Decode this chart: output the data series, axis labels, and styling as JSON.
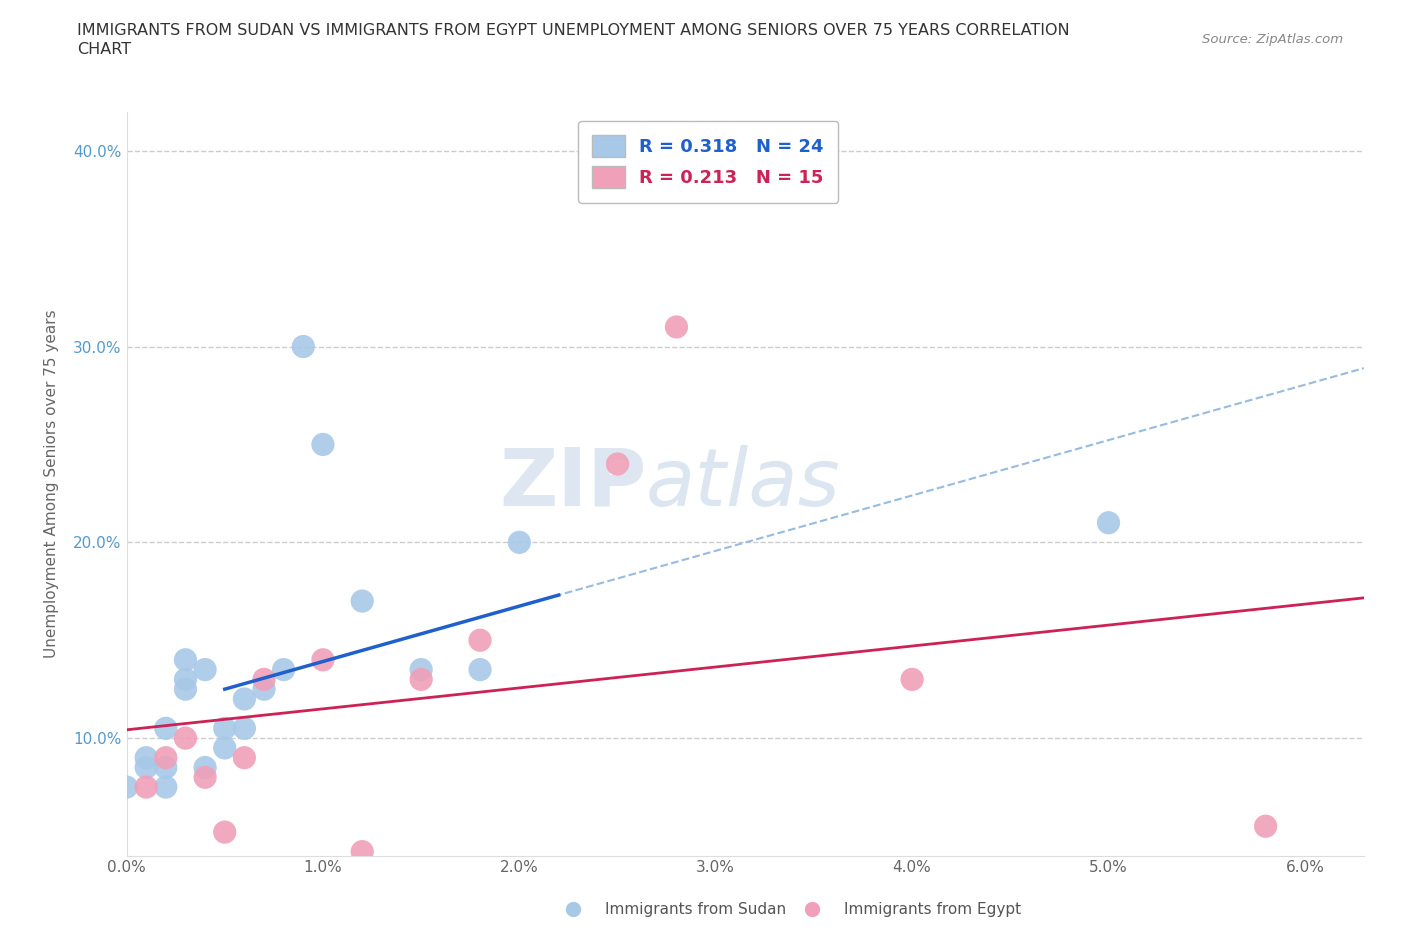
{
  "title_line1": "IMMIGRANTS FROM SUDAN VS IMMIGRANTS FROM EGYPT UNEMPLOYMENT AMONG SENIORS OVER 75 YEARS CORRELATION",
  "title_line2": "CHART",
  "source": "Source: ZipAtlas.com",
  "ylabel": "Unemployment Among Seniors over 75 years",
  "xlim": [
    0.0,
    0.063
  ],
  "ylim": [
    0.04,
    0.42
  ],
  "x_ticks": [
    0.0,
    0.01,
    0.02,
    0.03,
    0.04,
    0.05,
    0.06
  ],
  "x_tick_labels": [
    "0.0%",
    "1.0%",
    "2.0%",
    "3.0%",
    "4.0%",
    "5.0%",
    "6.0%"
  ],
  "y_ticks": [
    0.1,
    0.2,
    0.3,
    0.4
  ],
  "y_tick_labels": [
    "10.0%",
    "20.0%",
    "30.0%",
    "40.0%"
  ],
  "sudan_color": "#a8c8e8",
  "egypt_color": "#f0a0b8",
  "sudan_R": 0.318,
  "sudan_N": 24,
  "egypt_R": 0.213,
  "egypt_N": 15,
  "sudan_line_color": "#2060cc",
  "egypt_line_color": "#cc2255",
  "dashed_color": "#99bbdd",
  "watermark_zip": "ZIP",
  "watermark_atlas": "atlas",
  "legend_label_sudan": "Immigrants from Sudan",
  "legend_label_egypt": "Immigrants from Egypt",
  "bg_color": "#ffffff",
  "grid_color": "#cccccc",
  "sudan_x": [
    0.0,
    0.001,
    0.001,
    0.002,
    0.002,
    0.002,
    0.003,
    0.003,
    0.003,
    0.004,
    0.004,
    0.005,
    0.005,
    0.006,
    0.006,
    0.007,
    0.008,
    0.009,
    0.01,
    0.012,
    0.015,
    0.018,
    0.02,
    0.05
  ],
  "sudan_y": [
    0.075,
    0.085,
    0.09,
    0.075,
    0.085,
    0.105,
    0.13,
    0.14,
    0.125,
    0.085,
    0.135,
    0.095,
    0.105,
    0.105,
    0.12,
    0.125,
    0.135,
    0.3,
    0.25,
    0.17,
    0.135,
    0.135,
    0.2,
    0.21
  ],
  "egypt_x": [
    0.001,
    0.002,
    0.003,
    0.004,
    0.005,
    0.006,
    0.007,
    0.01,
    0.012,
    0.015,
    0.018,
    0.025,
    0.028,
    0.04,
    0.058
  ],
  "egypt_y": [
    0.075,
    0.09,
    0.1,
    0.08,
    0.052,
    0.09,
    0.13,
    0.14,
    0.042,
    0.13,
    0.15,
    0.24,
    0.31,
    0.13,
    0.055
  ]
}
